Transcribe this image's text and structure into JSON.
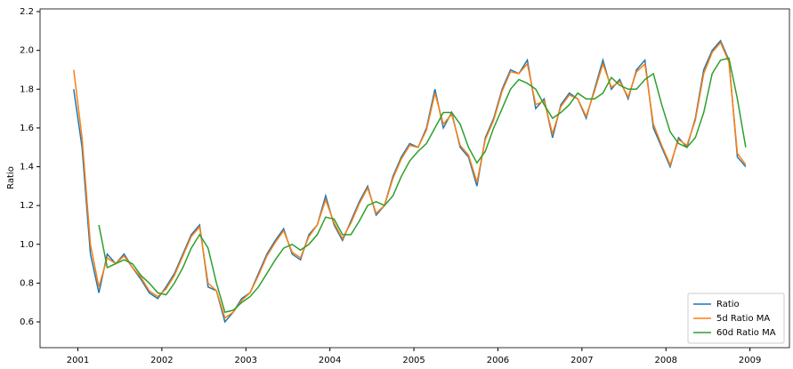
{
  "chart_data": {
    "type": "line",
    "y_label": "Ratio",
    "legend": "lower right",
    "grid": false,
    "xlim": [
      2000.55,
      2009.47
    ],
    "ylim": [
      0.467,
      2.214
    ],
    "xticks": [
      2001,
      2002,
      2003,
      2004,
      2005,
      2006,
      2007,
      2008,
      2009
    ],
    "yticks": [
      {
        "value": 0.6,
        "label": "0.6"
      },
      {
        "value": 0.8,
        "label": "0.8"
      },
      {
        "value": 1.0,
        "label": "1.0"
      },
      {
        "value": 1.2,
        "label": "1.2"
      },
      {
        "value": 1.4,
        "label": "1.4"
      },
      {
        "value": 1.6,
        "label": "1.6"
      },
      {
        "value": 1.8,
        "label": "1.8"
      },
      {
        "value": 2.0,
        "label": "2.0"
      },
      {
        "value": 2.2,
        "label": "2.2"
      }
    ],
    "x": [
      2000.95,
      2001.05,
      2001.15,
      2001.25,
      2001.35,
      2001.45,
      2001.55,
      2001.65,
      2001.75,
      2001.85,
      2001.95,
      2002.05,
      2002.15,
      2002.25,
      2002.35,
      2002.45,
      2002.55,
      2002.65,
      2002.75,
      2002.85,
      2002.95,
      2003.05,
      2003.15,
      2003.25,
      2003.35,
      2003.45,
      2003.55,
      2003.65,
      2003.75,
      2003.85,
      2003.95,
      2004.05,
      2004.15,
      2004.25,
      2004.35,
      2004.45,
      2004.55,
      2004.65,
      2004.75,
      2004.85,
      2004.95,
      2005.05,
      2005.15,
      2005.25,
      2005.35,
      2005.45,
      2005.55,
      2005.65,
      2005.75,
      2005.85,
      2005.95,
      2006.05,
      2006.15,
      2006.25,
      2006.35,
      2006.45,
      2006.55,
      2006.65,
      2006.75,
      2006.85,
      2006.95,
      2007.05,
      2007.15,
      2007.25,
      2007.35,
      2007.45,
      2007.55,
      2007.65,
      2007.75,
      2007.85,
      2007.95,
      2008.05,
      2008.15,
      2008.25,
      2008.35,
      2008.45,
      2008.55,
      2008.65,
      2008.75,
      2008.85,
      2008.95
    ],
    "series": [
      {
        "name": "Ratio",
        "color": "#1f77b4",
        "values": [
          1.8,
          1.5,
          0.95,
          0.75,
          0.95,
          0.9,
          0.95,
          0.88,
          0.82,
          0.75,
          0.72,
          0.78,
          0.85,
          0.95,
          1.05,
          1.1,
          0.78,
          0.76,
          0.6,
          0.65,
          0.72,
          0.75,
          0.85,
          0.95,
          1.02,
          1.08,
          0.95,
          0.92,
          1.05,
          1.1,
          1.25,
          1.1,
          1.02,
          1.12,
          1.22,
          1.3,
          1.15,
          1.2,
          1.35,
          1.45,
          1.52,
          1.5,
          1.6,
          1.8,
          1.6,
          1.68,
          1.5,
          1.45,
          1.3,
          1.55,
          1.65,
          1.8,
          1.9,
          1.88,
          1.95,
          1.7,
          1.75,
          1.55,
          1.72,
          1.78,
          1.75,
          1.65,
          1.8,
          1.95,
          1.8,
          1.85,
          1.75,
          1.9,
          1.95,
          1.6,
          1.5,
          1.4,
          1.55,
          1.5,
          1.65,
          1.9,
          2.0,
          2.05,
          1.95,
          1.45,
          1.4
        ]
      },
      {
        "name": "5d Ratio MA",
        "color": "#ff7f0e",
        "values": [
          1.9,
          1.55,
          1.0,
          0.78,
          0.93,
          0.9,
          0.94,
          0.88,
          0.83,
          0.76,
          0.73,
          0.77,
          0.84,
          0.94,
          1.04,
          1.09,
          0.8,
          0.76,
          0.62,
          0.65,
          0.71,
          0.75,
          0.84,
          0.94,
          1.01,
          1.07,
          0.96,
          0.93,
          1.04,
          1.1,
          1.23,
          1.11,
          1.03,
          1.11,
          1.21,
          1.29,
          1.16,
          1.2,
          1.34,
          1.44,
          1.51,
          1.5,
          1.59,
          1.78,
          1.62,
          1.67,
          1.51,
          1.46,
          1.32,
          1.54,
          1.64,
          1.79,
          1.89,
          1.88,
          1.93,
          1.72,
          1.74,
          1.57,
          1.71,
          1.77,
          1.75,
          1.66,
          1.79,
          1.93,
          1.81,
          1.84,
          1.76,
          1.89,
          1.93,
          1.62,
          1.51,
          1.41,
          1.54,
          1.51,
          1.64,
          1.88,
          1.99,
          2.04,
          1.94,
          1.47,
          1.41
        ]
      },
      {
        "name": "60d Ratio MA",
        "color": "#2ca02c",
        "values": [
          null,
          null,
          null,
          1.1,
          0.88,
          0.9,
          0.92,
          0.9,
          0.84,
          0.8,
          0.75,
          0.74,
          0.8,
          0.88,
          0.98,
          1.05,
          0.98,
          0.8,
          0.65,
          0.66,
          0.7,
          0.73,
          0.78,
          0.85,
          0.92,
          0.98,
          1.0,
          0.97,
          1.0,
          1.05,
          1.14,
          1.13,
          1.05,
          1.05,
          1.12,
          1.2,
          1.22,
          1.2,
          1.25,
          1.35,
          1.43,
          1.48,
          1.52,
          1.6,
          1.68,
          1.68,
          1.62,
          1.5,
          1.42,
          1.48,
          1.6,
          1.7,
          1.8,
          1.85,
          1.83,
          1.8,
          1.72,
          1.65,
          1.68,
          1.72,
          1.78,
          1.75,
          1.75,
          1.78,
          1.86,
          1.82,
          1.8,
          1.8,
          1.85,
          1.88,
          1.72,
          1.58,
          1.52,
          1.5,
          1.55,
          1.68,
          1.88,
          1.95,
          1.96,
          1.75,
          1.5
        ]
      }
    ]
  }
}
